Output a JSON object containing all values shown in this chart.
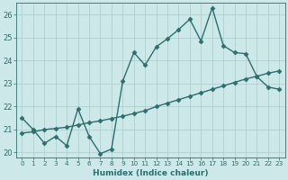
{
  "xlabel": "Humidex (Indice chaleur)",
  "ylabel": "",
  "background_color": "#cce8e8",
  "grid_color": "#aacccc",
  "line_color": "#2d6e6e",
  "xlim": [
    -0.5,
    23.5
  ],
  "ylim": [
    19.8,
    26.5
  ],
  "yticks": [
    20,
    21,
    22,
    23,
    24,
    25,
    26
  ],
  "xticks": [
    0,
    1,
    2,
    3,
    4,
    5,
    6,
    7,
    8,
    9,
    10,
    11,
    12,
    13,
    14,
    15,
    16,
    17,
    18,
    19,
    20,
    21,
    22,
    23
  ],
  "xtick_labels": [
    "0",
    "1",
    "2",
    "3",
    "4",
    "5",
    "6",
    "7",
    "8",
    "9",
    "10",
    "11",
    "12",
    "13",
    "14",
    "15",
    "16",
    "17",
    "18",
    "19",
    "20",
    "21",
    "22",
    "23"
  ],
  "line1_x": [
    0,
    1,
    2,
    3,
    4,
    5,
    6,
    7,
    8,
    9,
    10,
    11,
    12,
    13,
    14,
    15,
    16,
    17,
    18,
    19,
    20,
    21,
    22,
    23
  ],
  "line1_y": [
    21.5,
    21.0,
    20.4,
    20.7,
    20.3,
    21.9,
    20.7,
    19.95,
    20.15,
    23.1,
    24.35,
    23.8,
    24.6,
    24.95,
    25.35,
    25.8,
    24.85,
    26.3,
    24.65,
    24.35,
    24.3,
    23.3,
    22.85,
    22.75
  ],
  "line2_x": [
    0,
    1,
    2,
    3,
    4,
    5,
    6,
    7,
    8,
    9,
    10,
    11,
    12,
    13,
    14,
    15,
    16,
    17,
    18,
    19,
    20,
    21,
    22,
    23
  ],
  "line2_y": [
    20.85,
    20.9,
    21.0,
    21.05,
    21.1,
    21.2,
    21.3,
    21.38,
    21.48,
    21.58,
    21.7,
    21.82,
    22.0,
    22.15,
    22.3,
    22.45,
    22.6,
    22.75,
    22.9,
    23.05,
    23.2,
    23.32,
    23.45,
    23.55
  ],
  "marker": "D",
  "markersize": 2.5,
  "linewidth": 1.0
}
